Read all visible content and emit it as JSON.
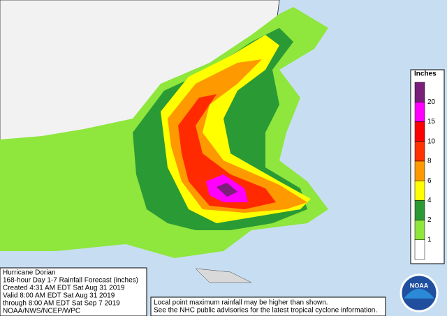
{
  "map": {
    "info": [
      "Hurricane Dorian",
      "168-hour Day 1-7 Rainfall Forecast (inches)",
      "Created 4:31 AM EDT Sat Aug 31 2019",
      "Valid 8:00 AM EDT Sat Aug 31 2019",
      "through 8:00 AM EDT Sat Sep 7 2019",
      "NOAA/NWS/NCEP/WPC"
    ],
    "notes": [
      "Local point maximum rainfall may be higher than shown.",
      "See the NHC public advisories for the latest tropical cyclone information."
    ],
    "legend": {
      "title": "Inches",
      "levels": [
        {
          "value": 1,
          "color": "#8fe63c"
        },
        {
          "value": 2,
          "color": "#2a9a35"
        },
        {
          "value": 4,
          "color": "#ffff00"
        },
        {
          "value": 6,
          "color": "#ff9900"
        },
        {
          "value": 8,
          "color": "#ff3300"
        },
        {
          "value": 10,
          "color": "#ff0000"
        },
        {
          "value": 15,
          "color": "#ff00ff"
        },
        {
          "value": 20,
          "color": "#7a1f7a"
        }
      ]
    },
    "logo": "NOAA"
  }
}
